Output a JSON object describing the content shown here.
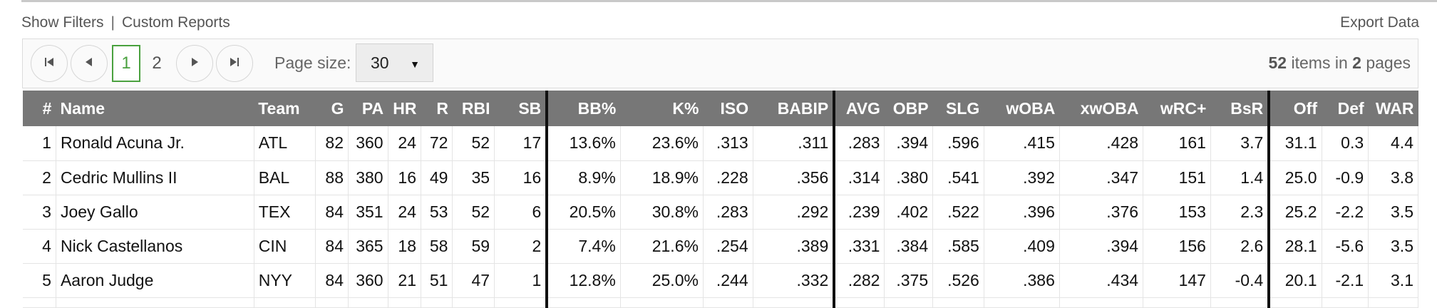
{
  "toolbar": {
    "show_filters": "Show Filters",
    "separator": "|",
    "custom_reports": "Custom Reports",
    "export_data": "Export Data"
  },
  "pager": {
    "first_icon": "first-page-icon",
    "prev_icon": "prev-page-icon",
    "next_icon": "next-page-icon",
    "last_icon": "last-page-icon",
    "pages": [
      "1",
      "2"
    ],
    "current_page": "1",
    "page_size_label": "Page size:",
    "page_size_value": "30",
    "summary_items": "52",
    "summary_text_1": "items in",
    "summary_pages": "2",
    "summary_text_2": "pages"
  },
  "table": {
    "columns": [
      "#",
      "Name",
      "Team",
      "G",
      "PA",
      "HR",
      "R",
      "RBI",
      "SB",
      "BB%",
      "K%",
      "ISO",
      "BABIP",
      "AVG",
      "OBP",
      "SLG",
      "wOBA",
      "xwOBA",
      "wRC+",
      "BsR",
      "Off",
      "Def",
      "WAR"
    ],
    "rows": [
      [
        "1",
        "Ronald Acuna Jr.",
        "ATL",
        "82",
        "360",
        "24",
        "72",
        "52",
        "17",
        "13.6%",
        "23.6%",
        ".313",
        ".311",
        ".283",
        ".394",
        ".596",
        ".415",
        ".428",
        "161",
        "3.7",
        "31.1",
        "0.3",
        "4.4"
      ],
      [
        "2",
        "Cedric Mullins II",
        "BAL",
        "88",
        "380",
        "16",
        "49",
        "35",
        "16",
        "8.9%",
        "18.9%",
        ".228",
        ".356",
        ".314",
        ".380",
        ".541",
        ".392",
        ".347",
        "151",
        "1.4",
        "25.0",
        "-0.9",
        "3.8"
      ],
      [
        "3",
        "Joey Gallo",
        "TEX",
        "84",
        "351",
        "24",
        "53",
        "52",
        "6",
        "20.5%",
        "30.8%",
        ".283",
        ".292",
        ".239",
        ".402",
        ".522",
        ".396",
        ".376",
        "153",
        "2.3",
        "25.2",
        "-2.2",
        "3.5"
      ],
      [
        "4",
        "Nick Castellanos",
        "CIN",
        "84",
        "365",
        "18",
        "58",
        "59",
        "2",
        "7.4%",
        "21.6%",
        ".254",
        ".389",
        ".331",
        ".384",
        ".585",
        ".409",
        ".394",
        "156",
        "2.6",
        "28.1",
        "-5.6",
        "3.5"
      ],
      [
        "5",
        "Aaron Judge",
        "NYY",
        "84",
        "360",
        "21",
        "51",
        "47",
        "1",
        "12.8%",
        "25.0%",
        ".244",
        ".332",
        ".282",
        ".375",
        ".526",
        ".386",
        ".434",
        "147",
        "-0.4",
        "20.1",
        "-2.1",
        "3.1"
      ]
    ]
  },
  "colors": {
    "header_bg": "#777777",
    "active_page": "#4aa13f",
    "group_divider": "#111111"
  }
}
